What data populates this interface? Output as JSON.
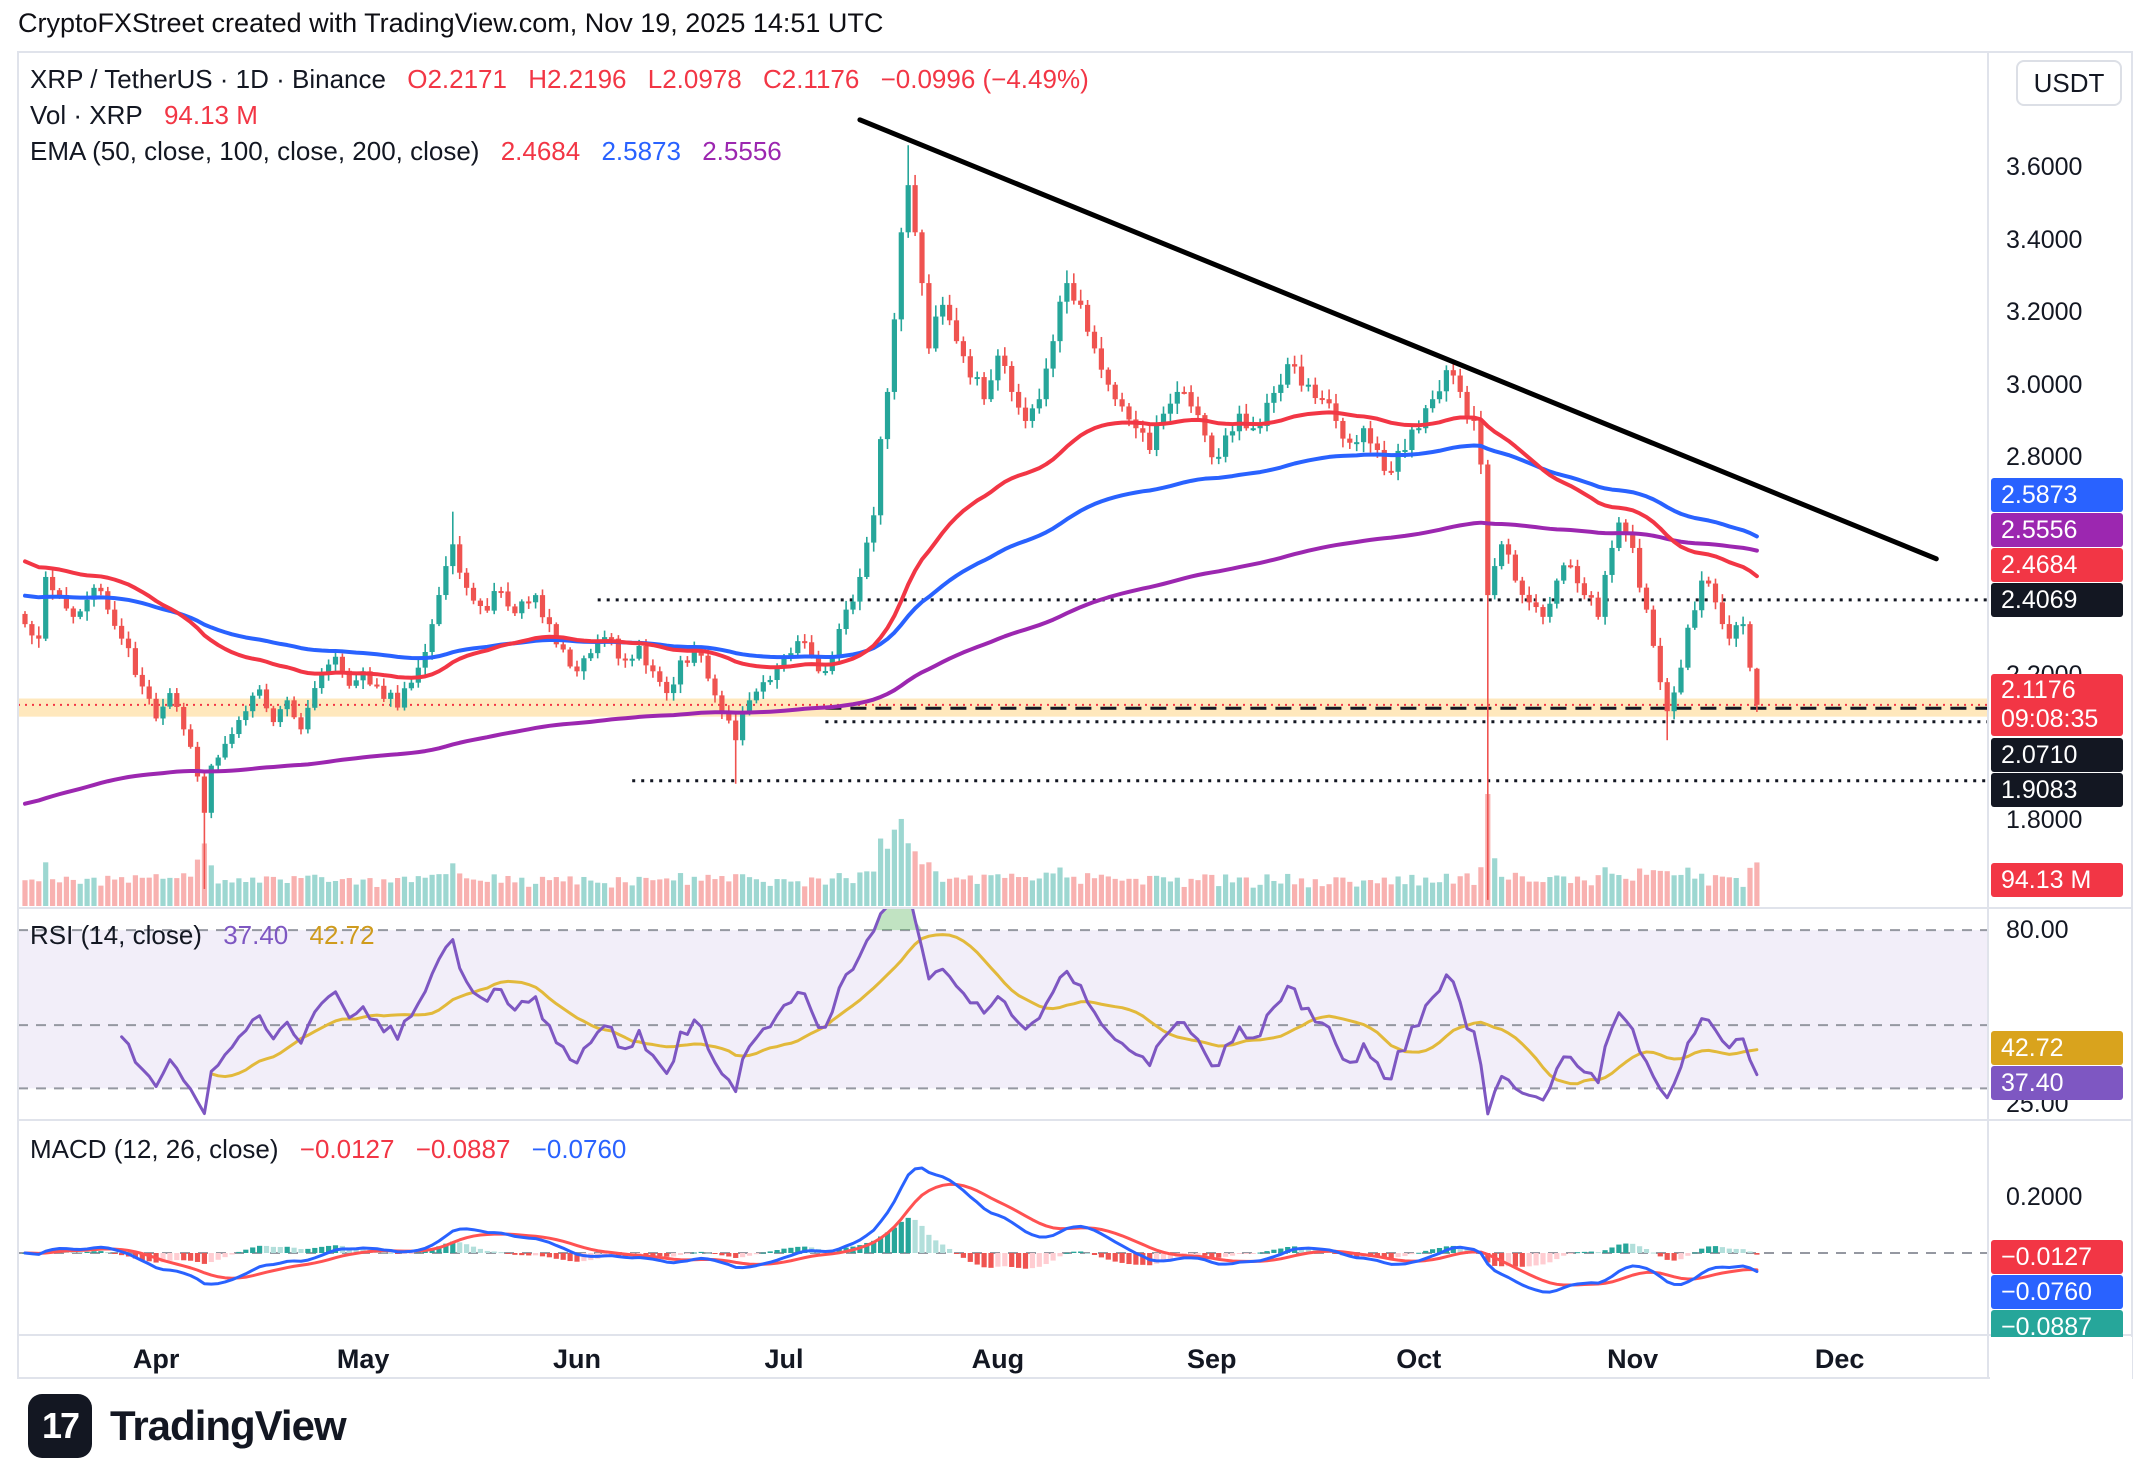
{
  "header": {
    "attribution": "CryptoFXStreet created with TradingView.com, Nov 19, 2025 14:51 UTC"
  },
  "main_legend": {
    "symbol": "XRP / TetherUS · 1D · Binance",
    "open": "O2.2171",
    "high": "H2.2196",
    "low": "L2.0978",
    "close": "C2.1176",
    "change": "−0.0996 (−4.49%)",
    "vol_label": "Vol · XRP",
    "vol_value": "94.13 M",
    "ema_label": "EMA (50, close, 100, close, 200, close)",
    "ema50": "2.4684",
    "ema100": "2.5873",
    "ema200": "2.5556"
  },
  "rsi_legend": {
    "label": "RSI (14, close)",
    "value": "37.40",
    "ma_value": "42.72"
  },
  "macd_legend": {
    "label": "MACD (12, 26, close)",
    "hist": "−0.0127",
    "macd": "−0.0887",
    "signal": "−0.0760"
  },
  "price_axis": {
    "currency": "USDT",
    "ticks": [
      {
        "label": "3.6000",
        "price": 3.6
      },
      {
        "label": "3.4000",
        "price": 3.4
      },
      {
        "label": "3.2000",
        "price": 3.2
      },
      {
        "label": "3.0000",
        "price": 3.0
      },
      {
        "label": "2.8000",
        "price": 2.8
      },
      {
        "label": "2.2000",
        "price": 2.2
      },
      {
        "label": "1.8000",
        "price": 1.8
      }
    ],
    "badges_upper": [
      {
        "label": "2.5873",
        "color": "#2962ff",
        "price": 2.5873
      },
      {
        "label": "2.5556",
        "color": "#9c27b0",
        "price": 2.5556
      },
      {
        "label": "2.4684",
        "color": "#f23645",
        "price": 2.4684
      },
      {
        "label": "2.4069",
        "color": "#131722",
        "price": 2.4069
      }
    ],
    "badge_current": {
      "label": "2.1176",
      "countdown": "09:08:35",
      "color": "#f23645",
      "price": 2.1176
    },
    "badges_lower": [
      {
        "label": "2.0710",
        "color": "#131722",
        "price": 2.071
      },
      {
        "label": "1.9083",
        "color": "#131722",
        "price": 1.9083
      }
    ],
    "badge_volume": {
      "label": "94.13 M",
      "color": "#f23645"
    }
  },
  "rsi_axis": {
    "ticks": [
      {
        "label": "80.00",
        "value": 80
      },
      {
        "label": "25.00",
        "value": 25
      }
    ],
    "badges": [
      {
        "label": "42.72",
        "color": "#d9a31d",
        "value": 42.72
      },
      {
        "label": "37.40",
        "color": "#7e57c2",
        "value": 37.4
      }
    ]
  },
  "macd_axis": {
    "ticks": [
      {
        "label": "0.2000",
        "value": 0.2
      }
    ],
    "badges": [
      {
        "label": "−0.0127",
        "color": "#f23645",
        "value": -0.0127
      },
      {
        "label": "−0.0760",
        "color": "#2962ff",
        "value": -0.076
      },
      {
        "label": "−0.0887",
        "color": "#26a69a",
        "value": -0.0887
      }
    ]
  },
  "time_axis": {
    "months": [
      {
        "label": "Apr",
        "day": 19
      },
      {
        "label": "May",
        "day": 49
      },
      {
        "label": "Jun",
        "day": 80
      },
      {
        "label": "Jul",
        "day": 110
      },
      {
        "label": "Aug",
        "day": 141
      },
      {
        "label": "Sep",
        "day": 172
      },
      {
        "label": "Oct",
        "day": 202
      },
      {
        "label": "Nov",
        "day": 233
      },
      {
        "label": "Dec",
        "day": 263
      }
    ]
  },
  "footer": {
    "brand": "TradingView",
    "logo_text": "17"
  },
  "chart_data": {
    "type": "candlestick",
    "symbol": "XRP/USDT",
    "exchange": "Binance",
    "timeframe": "1D",
    "start_date": "2025-03-13",
    "end_date": "2025-11-19",
    "current_price": 2.1176,
    "volume_current": 94.13,
    "y_axis_range": [
      1.55,
      3.87
    ],
    "last_candle": {
      "open": 2.2171,
      "high": 2.2196,
      "low": 2.0978,
      "close": 2.1176
    },
    "close_keypoints": [
      [
        0,
        2.34
      ],
      [
        2,
        2.3
      ],
      [
        3,
        2.47
      ],
      [
        5,
        2.42
      ],
      [
        7,
        2.36
      ],
      [
        10,
        2.44
      ],
      [
        12,
        2.38
      ],
      [
        14,
        2.3
      ],
      [
        16,
        2.2
      ],
      [
        19,
        2.08
      ],
      [
        21,
        2.15
      ],
      [
        23,
        2.05
      ],
      [
        25,
        1.92
      ],
      [
        26,
        1.82
      ],
      [
        27,
        1.95
      ],
      [
        29,
        2.01
      ],
      [
        32,
        2.1
      ],
      [
        34,
        2.16
      ],
      [
        36,
        2.07
      ],
      [
        38,
        2.13
      ],
      [
        40,
        2.05
      ],
      [
        43,
        2.2
      ],
      [
        45,
        2.25
      ],
      [
        47,
        2.17
      ],
      [
        49,
        2.21
      ],
      [
        51,
        2.17
      ],
      [
        54,
        2.11
      ],
      [
        57,
        2.22
      ],
      [
        59,
        2.34
      ],
      [
        61,
        2.5
      ],
      [
        62,
        2.56
      ],
      [
        64,
        2.44
      ],
      [
        66,
        2.39
      ],
      [
        69,
        2.43
      ],
      [
        71,
        2.37
      ],
      [
        74,
        2.42
      ],
      [
        76,
        2.34
      ],
      [
        78,
        2.27
      ],
      [
        80,
        2.21
      ],
      [
        82,
        2.26
      ],
      [
        85,
        2.3
      ],
      [
        87,
        2.24
      ],
      [
        89,
        2.28
      ],
      [
        91,
        2.21
      ],
      [
        93,
        2.15
      ],
      [
        95,
        2.24
      ],
      [
        97,
        2.27
      ],
      [
        99,
        2.19
      ],
      [
        101,
        2.1
      ],
      [
        103,
        2.02
      ],
      [
        105,
        2.13
      ],
      [
        107,
        2.18
      ],
      [
        109,
        2.22
      ],
      [
        111,
        2.26
      ],
      [
        113,
        2.29
      ],
      [
        115,
        2.21
      ],
      [
        117,
        2.25
      ],
      [
        119,
        2.38
      ],
      [
        121,
        2.47
      ],
      [
        123,
        2.64
      ],
      [
        124,
        2.85
      ],
      [
        125,
        2.98
      ],
      [
        126,
        3.18
      ],
      [
        127,
        3.42
      ],
      [
        128,
        3.55
      ],
      [
        129,
        3.42
      ],
      [
        130,
        3.28
      ],
      [
        131,
        3.1
      ],
      [
        133,
        3.22
      ],
      [
        135,
        3.12
      ],
      [
        137,
        3.02
      ],
      [
        139,
        2.96
      ],
      [
        141,
        3.08
      ],
      [
        143,
        2.98
      ],
      [
        145,
        2.9
      ],
      [
        147,
        2.96
      ],
      [
        149,
        3.12
      ],
      [
        151,
        3.28
      ],
      [
        153,
        3.22
      ],
      [
        155,
        3.1
      ],
      [
        157,
        3.0
      ],
      [
        159,
        2.94
      ],
      [
        161,
        2.88
      ],
      [
        163,
        2.82
      ],
      [
        165,
        2.92
      ],
      [
        167,
        2.98
      ],
      [
        169,
        2.94
      ],
      [
        171,
        2.86
      ],
      [
        172,
        2.8
      ],
      [
        174,
        2.86
      ],
      [
        176,
        2.92
      ],
      [
        178,
        2.88
      ],
      [
        180,
        2.95
      ],
      [
        182,
        3.0
      ],
      [
        184,
        3.05
      ],
      [
        186,
        3.0
      ],
      [
        188,
        2.96
      ],
      [
        190,
        2.9
      ],
      [
        192,
        2.84
      ],
      [
        194,
        2.88
      ],
      [
        196,
        2.82
      ],
      [
        198,
        2.76
      ],
      [
        200,
        2.82
      ],
      [
        202,
        2.88
      ],
      [
        204,
        2.96
      ],
      [
        206,
        3.04
      ],
      [
        208,
        2.98
      ],
      [
        210,
        2.9
      ],
      [
        211,
        2.78
      ],
      [
        212,
        2.42
      ],
      [
        213,
        2.5
      ],
      [
        214,
        2.56
      ],
      [
        216,
        2.46
      ],
      [
        218,
        2.4
      ],
      [
        220,
        2.36
      ],
      [
        222,
        2.46
      ],
      [
        224,
        2.5
      ],
      [
        226,
        2.42
      ],
      [
        228,
        2.36
      ],
      [
        230,
        2.55
      ],
      [
        231,
        2.62
      ],
      [
        233,
        2.55
      ],
      [
        235,
        2.38
      ],
      [
        236,
        2.28
      ],
      [
        237,
        2.18
      ],
      [
        238,
        2.1
      ],
      [
        240,
        2.22
      ],
      [
        241,
        2.33
      ],
      [
        243,
        2.46
      ],
      [
        245,
        2.4
      ],
      [
        247,
        2.3
      ],
      [
        249,
        2.34
      ],
      [
        250,
        2.22
      ],
      [
        251,
        2.1176
      ]
    ],
    "wick_overrides": [
      {
        "day": 26,
        "low": 1.61
      },
      {
        "day": 62,
        "high": 2.65
      },
      {
        "day": 103,
        "low": 1.9
      },
      {
        "day": 128,
        "high": 3.66
      },
      {
        "day": 212,
        "low": 1.58
      },
      {
        "day": 238,
        "low": 2.02
      }
    ],
    "volume_spikes": {
      "25": 2.0,
      "26": 2.8,
      "62": 1.8,
      "124": 2.0,
      "125": 2.2,
      "126": 2.6,
      "127": 3.0,
      "128": 2.6,
      "129": 2.0,
      "212": 3.6,
      "213": 2.0
    },
    "candle_colors": {
      "up": "#26a69a",
      "down": "#ef5350",
      "vol_up": "rgba(38,166,154,0.45)",
      "vol_down": "rgba(239,83,80,0.45)"
    },
    "trendline": {
      "from": {
        "day": 121,
        "price": 3.73
      },
      "to": {
        "day": 277,
        "price": 2.52
      },
      "color": "#000000",
      "width": 5
    },
    "support_zone": {
      "top": 2.135,
      "bottom": 2.085,
      "color": "rgba(255,185,50,0.32)"
    },
    "levels": [
      {
        "price": 2.4069,
        "style": "dotted",
        "color": "#131722",
        "from_day": 83
      },
      {
        "price": 2.108,
        "style": "dashed",
        "color": "#131722",
        "from_day": 116
      },
      {
        "price": 2.071,
        "style": "dotted",
        "color": "#131722",
        "from_day": 116
      },
      {
        "price": 1.9083,
        "style": "dotted",
        "color": "#131722",
        "from_day": 88
      }
    ],
    "indicators": {
      "ema": [
        {
          "period": 50,
          "seed": 2.52,
          "color": "#f23645"
        },
        {
          "period": 100,
          "seed": 2.42,
          "color": "#2962ff"
        },
        {
          "period": 200,
          "seed": 1.84,
          "color": "#9c27b0"
        }
      ],
      "rsi": {
        "period": 14,
        "ma_period": 14,
        "color": "#7e57c2",
        "ma_color": "#e2b93b",
        "bands": [
          80,
          50,
          30
        ],
        "band_fill": "rgba(126,87,194,0.10)",
        "overbought_fill": "rgba(76,175,80,0.35)"
      },
      "macd": {
        "fast": 12,
        "slow": 26,
        "signal_period": 9,
        "macd_color": "#2962ff",
        "signal_color": "#ff5252",
        "hist_colors": [
          "#26a69a",
          "#b2dfdb",
          "#ef5350",
          "#ffcdd2"
        ]
      }
    }
  }
}
